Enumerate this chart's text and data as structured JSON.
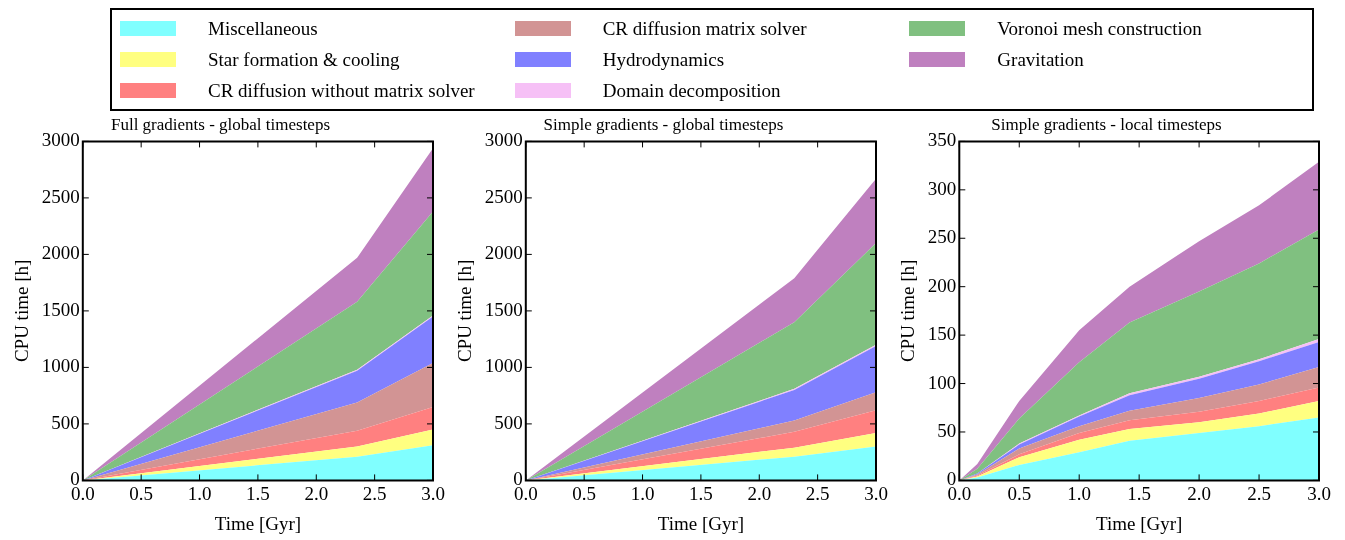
{
  "chart_data": [
    {
      "type": "area",
      "title": "Full gradients - global timesteps",
      "xlabel": "Time [Gyr]",
      "ylabel": "CPU time [h]",
      "stacked": true,
      "legend": "top",
      "grid": false,
      "x": [
        0,
        2.35,
        3
      ],
      "xlim": [
        0,
        3
      ],
      "xticks": [
        {
          "value": 0,
          "label": "0.0"
        },
        {
          "value": 0.5,
          "label": "0.5"
        },
        {
          "value": 1,
          "label": "1.0"
        },
        {
          "value": 1.5,
          "label": "1.5"
        },
        {
          "value": 2,
          "label": "2.0"
        },
        {
          "value": 2.5,
          "label": "2.5"
        },
        {
          "value": 3,
          "label": "3.0"
        }
      ],
      "ylim": [
        0,
        3000
      ],
      "yticks": [
        0,
        500,
        1000,
        1500,
        2000,
        2500,
        3000
      ],
      "series": [
        {
          "name": "Miscellaneous",
          "color": "#80ffff",
          "values": [
            0,
            210,
            310
          ]
        },
        {
          "name": "Star formation & cooling",
          "color": "#ffff80",
          "values": [
            0,
            90,
            140
          ]
        },
        {
          "name": "CR diffusion without matrix solver",
          "color": "#ff8080",
          "values": [
            0,
            140,
            200
          ]
        },
        {
          "name": "CR diffusion matrix solver",
          "color": "#d29494",
          "values": [
            0,
            250,
            390
          ]
        },
        {
          "name": "Hydrodynamics",
          "color": "#8080ff",
          "values": [
            0,
            280,
            410
          ]
        },
        {
          "name": "Domain decomposition",
          "color": "#f6c0f6",
          "values": [
            0,
            10,
            10
          ]
        },
        {
          "name": "Voronoi mesh construction",
          "color": "#80c080",
          "values": [
            0,
            600,
            920
          ]
        },
        {
          "name": "Gravitation",
          "color": "#bf80bf",
          "values": [
            0,
            390,
            560
          ]
        }
      ]
    },
    {
      "type": "area",
      "title": "Simple gradients - global timesteps",
      "xlabel": "Time [Gyr]",
      "ylabel": "CPU time [h]",
      "stacked": true,
      "grid": false,
      "x": [
        0,
        2.3,
        3
      ],
      "xlim": [
        0,
        3
      ],
      "xticks": [
        {
          "value": 0,
          "label": "0.0"
        },
        {
          "value": 0.5,
          "label": "0.5"
        },
        {
          "value": 1,
          "label": "1.0"
        },
        {
          "value": 1.5,
          "label": "1.5"
        },
        {
          "value": 2,
          "label": "2.0"
        },
        {
          "value": 2.5,
          "label": "2.5"
        },
        {
          "value": 3,
          "label": "3.0"
        }
      ],
      "ylim": [
        0,
        3000
      ],
      "yticks": [
        0,
        500,
        1000,
        1500,
        2000,
        2500,
        3000
      ],
      "series": [
        {
          "color": "#80ffff",
          "values": [
            0,
            210,
            300
          ]
        },
        {
          "color": "#ffff80",
          "values": [
            0,
            80,
            120
          ]
        },
        {
          "color": "#ff8080",
          "values": [
            0,
            140,
            200
          ]
        },
        {
          "color": "#d29494",
          "values": [
            0,
            100,
            160
          ]
        },
        {
          "color": "#8080ff",
          "values": [
            0,
            270,
            410
          ]
        },
        {
          "color": "#f6c0f6",
          "values": [
            0,
            10,
            10
          ]
        },
        {
          "color": "#80c080",
          "values": [
            0,
            590,
            900
          ]
        },
        {
          "color": "#bf80bf",
          "values": [
            0,
            390,
            570
          ]
        }
      ]
    },
    {
      "type": "area",
      "title": "Simple gradients - local timesteps",
      "xlabel": "Time [Gyr]",
      "ylabel": "CPU time [h]",
      "stacked": true,
      "grid": false,
      "x": [
        0,
        0.15,
        0.5,
        1,
        1.42,
        2,
        2.5,
        3
      ],
      "xlim": [
        0,
        3
      ],
      "xticks": [
        {
          "value": 0,
          "label": "0.0"
        },
        {
          "value": 0.5,
          "label": "0.5"
        },
        {
          "value": 1,
          "label": "1.0"
        },
        {
          "value": 1.5,
          "label": "1.5"
        },
        {
          "value": 2,
          "label": "2.0"
        },
        {
          "value": 2.5,
          "label": "2.5"
        },
        {
          "value": 3,
          "label": "3.0"
        }
      ],
      "ylim": [
        0,
        350
      ],
      "yticks": [
        0,
        50,
        100,
        150,
        200,
        250,
        300,
        350
      ],
      "series": [
        {
          "color": "#80ffff",
          "values": [
            0,
            3,
            16,
            29,
            41,
            49,
            56,
            65
          ]
        },
        {
          "color": "#ffff80",
          "values": [
            0,
            1,
            8,
            13,
            12,
            11,
            13,
            17
          ]
        },
        {
          "color": "#ff8080",
          "values": [
            0,
            1,
            3,
            7,
            9,
            11,
            13,
            14
          ]
        },
        {
          "color": "#d29494",
          "values": [
            0,
            1,
            6,
            7,
            10,
            14,
            17,
            21
          ]
        },
        {
          "color": "#8080ff",
          "values": [
            0,
            1,
            4,
            10,
            16,
            20,
            24,
            26
          ]
        },
        {
          "color": "#f6c0f6",
          "values": [
            0,
            0,
            1,
            1,
            2,
            2,
            2,
            3
          ]
        },
        {
          "color": "#80c080",
          "values": [
            0,
            5,
            26,
            55,
            73,
            88,
            99,
            113
          ]
        },
        {
          "color": "#bf80bf",
          "values": [
            0,
            5,
            18,
            33,
            37,
            52,
            60,
            70
          ]
        }
      ]
    }
  ]
}
